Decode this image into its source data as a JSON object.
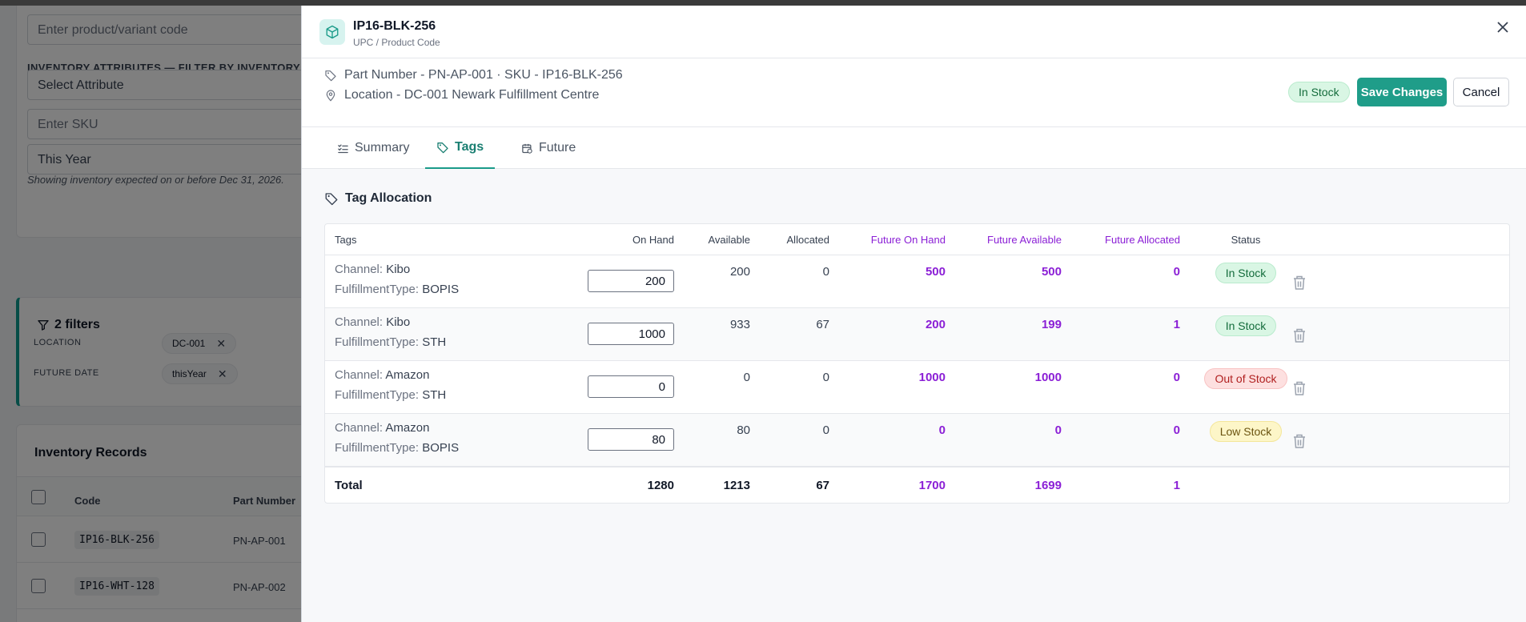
{
  "background": {
    "product_code_placeholder": "Enter product/variant code",
    "attributes_label": "INVENTORY ATTRIBUTES — FILTER BY INVENTORY",
    "attribute_placeholder": "Select Attribute",
    "sku_placeholder": "Enter SKU",
    "date_range_value": "This Year",
    "helper_text": "Showing inventory expected on or before Dec 31, 2026.",
    "filters_title": "2 filters",
    "filters": [
      {
        "label": "LOCATION",
        "value": "DC-001"
      },
      {
        "label": "FUTURE DATE",
        "value": "thisYear"
      }
    ],
    "records_title": "Inventory Records",
    "records_columns": [
      "Code",
      "Part Number"
    ],
    "records": [
      {
        "code": "IP16-BLK-256",
        "part_number": "PN-AP-001"
      },
      {
        "code": "IP16-WHT-128",
        "part_number": "PN-AP-002"
      }
    ]
  },
  "drawer": {
    "title": "IP16-BLK-256",
    "subtitle": "UPC / Product Code",
    "part_line": "Part Number - PN-AP-001 · SKU - IP16-BLK-256",
    "location_line": "Location - DC-001 Newark Fulfillment Centre",
    "status_badge": "In Stock",
    "save_label": "Save Changes",
    "cancel_label": "Cancel",
    "tabs": [
      {
        "label": "Summary",
        "active": false
      },
      {
        "label": "Tags",
        "active": true
      },
      {
        "label": "Future",
        "active": false
      }
    ],
    "section_title": "Tag Allocation",
    "columns": {
      "tags": "Tags",
      "on_hand": "On Hand",
      "available": "Available",
      "allocated": "Allocated",
      "future_on_hand": "Future On Hand",
      "future_available": "Future Available",
      "future_allocated": "Future Allocated",
      "status": "Status"
    },
    "rows": [
      {
        "channel_label": "Channel:",
        "channel": "Kibo",
        "ft_label": "FulfillmentType:",
        "fulfillment_type": "BOPIS",
        "on_hand": "200",
        "available": "200",
        "allocated": "0",
        "future_on_hand": "500",
        "future_available": "500",
        "future_allocated": "0",
        "status": "In Stock",
        "status_kind": "instock"
      },
      {
        "channel_label": "Channel:",
        "channel": "Kibo",
        "ft_label": "FulfillmentType:",
        "fulfillment_type": "STH",
        "on_hand": "1000",
        "available": "933",
        "allocated": "67",
        "future_on_hand": "200",
        "future_available": "199",
        "future_allocated": "1",
        "status": "In Stock",
        "status_kind": "instock"
      },
      {
        "channel_label": "Channel:",
        "channel": "Amazon",
        "ft_label": "FulfillmentType:",
        "fulfillment_type": "STH",
        "on_hand": "0",
        "available": "0",
        "allocated": "0",
        "future_on_hand": "1000",
        "future_available": "1000",
        "future_allocated": "0",
        "status": "Out of Stock",
        "status_kind": "outstock"
      },
      {
        "channel_label": "Channel:",
        "channel": "Amazon",
        "ft_label": "FulfillmentType:",
        "fulfillment_type": "BOPIS",
        "on_hand": "80",
        "available": "80",
        "allocated": "0",
        "future_on_hand": "0",
        "future_available": "0",
        "future_allocated": "0",
        "status": "Low Stock",
        "status_kind": "lowstock"
      }
    ],
    "totals": {
      "label": "Total",
      "on_hand": "1280",
      "available": "1213",
      "allocated": "67",
      "future_on_hand": "1700",
      "future_available": "1699",
      "future_allocated": "1"
    },
    "colors": {
      "accent": "#1f9d89",
      "future": "#8b1fd6"
    }
  }
}
